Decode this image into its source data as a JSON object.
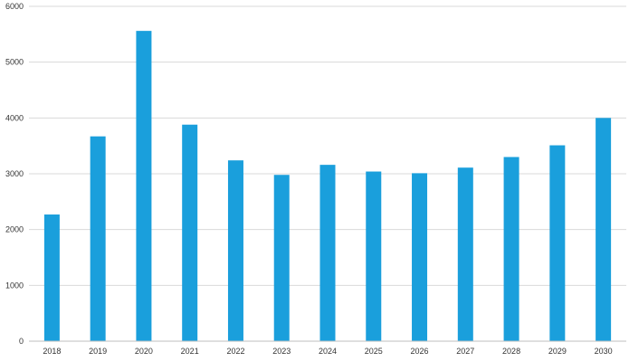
{
  "chart_data": {
    "type": "bar",
    "title": "",
    "xlabel": "",
    "ylabel": "",
    "categories": [
      "2018",
      "2019",
      "2020",
      "2021",
      "2022",
      "2023",
      "2024",
      "2025",
      "2026",
      "2027",
      "2028",
      "2029",
      "2030"
    ],
    "values": [
      2270,
      3670,
      5560,
      3880,
      3240,
      2980,
      3160,
      3040,
      3010,
      3110,
      3300,
      3510,
      4000
    ],
    "ylim": [
      0,
      6000
    ],
    "y_ticks": [
      0,
      1000,
      2000,
      3000,
      4000,
      5000,
      6000
    ],
    "grid": true,
    "legend": "none",
    "bar_color": "#1a9fdc"
  }
}
